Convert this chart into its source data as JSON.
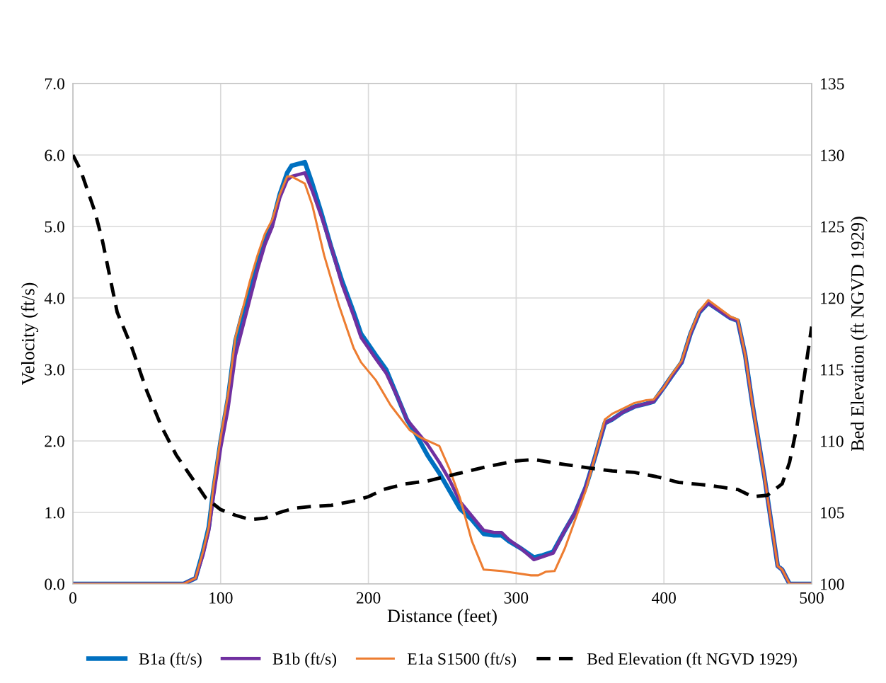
{
  "chart_data": {
    "type": "line",
    "xlabel": "Distance (feet)",
    "ylabel": "Velocity (ft/s)",
    "y2label": "Bed Elevation (ft NGVD 1929)",
    "xlim": [
      0,
      500
    ],
    "xticks": [
      0,
      100,
      200,
      300,
      400,
      500
    ],
    "ylim": [
      0,
      7
    ],
    "yticks": [
      {
        "value": 0,
        "label": "0.0"
      },
      {
        "value": 1,
        "label": "1.0"
      },
      {
        "value": 2,
        "label": "2.0"
      },
      {
        "value": 3,
        "label": "3.0"
      },
      {
        "value": 4,
        "label": "4.0"
      },
      {
        "value": 5,
        "label": "5.0"
      },
      {
        "value": 6,
        "label": "6.0"
      },
      {
        "value": 7,
        "label": "7.0"
      }
    ],
    "y2lim": [
      100,
      135
    ],
    "y2ticks": [
      100,
      105,
      110,
      115,
      120,
      125,
      130,
      135
    ],
    "grid": true,
    "legend": "bottom",
    "series": [
      {
        "name": "B1a (ft/s)",
        "color": "#0070c0",
        "line_style": "solid",
        "x": [
          0,
          75,
          80,
          83,
          88,
          92,
          95,
          100,
          105,
          110,
          115,
          120,
          125,
          130,
          135,
          140,
          145,
          148,
          157,
          162,
          168,
          175,
          182,
          190,
          195,
          200,
          205,
          212,
          220,
          226,
          232,
          240,
          248,
          255,
          262,
          270,
          278,
          285,
          290,
          295,
          303,
          312,
          318,
          325,
          333,
          340,
          347,
          353,
          360,
          365,
          372,
          380,
          388,
          393,
          400,
          405,
          412,
          418,
          424,
          430,
          445,
          450,
          455,
          460,
          468,
          477,
          480,
          485,
          500
        ],
        "values": [
          0,
          0,
          0.05,
          0.08,
          0.45,
          0.8,
          1.3,
          2.0,
          2.6,
          3.4,
          3.8,
          4.1,
          4.5,
          4.8,
          5.05,
          5.45,
          5.75,
          5.85,
          5.9,
          5.6,
          5.2,
          4.7,
          4.25,
          3.8,
          3.5,
          3.35,
          3.2,
          3.0,
          2.6,
          2.3,
          2.1,
          1.8,
          1.55,
          1.3,
          1.05,
          0.9,
          0.7,
          0.68,
          0.68,
          0.6,
          0.5,
          0.37,
          0.4,
          0.45,
          0.75,
          1.0,
          1.35,
          1.75,
          2.25,
          2.3,
          2.4,
          2.48,
          2.52,
          2.55,
          2.75,
          2.9,
          3.1,
          3.5,
          3.8,
          3.93,
          3.72,
          3.68,
          3.2,
          2.5,
          1.5,
          0.25,
          0.2,
          0,
          0
        ]
      },
      {
        "name": "B1b (ft/s)",
        "color": "#7030a0",
        "line_style": "solid",
        "x": [
          0,
          75,
          80,
          83,
          88,
          92,
          95,
          100,
          105,
          110,
          115,
          120,
          125,
          130,
          135,
          140,
          145,
          148,
          157,
          162,
          168,
          175,
          182,
          190,
          195,
          200,
          205,
          212,
          220,
          226,
          232,
          240,
          248,
          255,
          262,
          270,
          278,
          285,
          290,
          295,
          303,
          312,
          318,
          325,
          333,
          340,
          347,
          353,
          360,
          365,
          372,
          380,
          388,
          393,
          400,
          405,
          412,
          418,
          424,
          430,
          445,
          450,
          455,
          460,
          468,
          477,
          480,
          485,
          500
        ],
        "values": [
          0,
          0,
          0.05,
          0.08,
          0.4,
          0.75,
          1.2,
          1.9,
          2.45,
          3.2,
          3.6,
          4.0,
          4.4,
          4.75,
          5.0,
          5.4,
          5.65,
          5.7,
          5.75,
          5.5,
          5.15,
          4.7,
          4.2,
          3.75,
          3.45,
          3.3,
          3.15,
          2.95,
          2.6,
          2.3,
          2.15,
          1.95,
          1.7,
          1.45,
          1.15,
          0.95,
          0.75,
          0.72,
          0.72,
          0.62,
          0.5,
          0.34,
          0.38,
          0.43,
          0.75,
          1.0,
          1.35,
          1.75,
          2.25,
          2.3,
          2.4,
          2.48,
          2.52,
          2.55,
          2.75,
          2.9,
          3.1,
          3.5,
          3.8,
          3.93,
          3.72,
          3.68,
          3.2,
          2.5,
          1.5,
          0.25,
          0.2,
          0,
          0
        ]
      },
      {
        "name": "E1a S1500 (ft/s)",
        "color": "#ed7d31",
        "line_style": "solid",
        "x": [
          0,
          75,
          80,
          83,
          88,
          92,
          95,
          100,
          105,
          110,
          115,
          120,
          125,
          130,
          135,
          140,
          145,
          148,
          157,
          162,
          170,
          180,
          185,
          190,
          195,
          205,
          215,
          228,
          235,
          248,
          255,
          262,
          270,
          278,
          290,
          300,
          310,
          315,
          320,
          326,
          333,
          340,
          347,
          353,
          360,
          365,
          372,
          380,
          388,
          393,
          400,
          405,
          412,
          418,
          424,
          430,
          445,
          450,
          455,
          460,
          468,
          477,
          480,
          485,
          500
        ],
        "values": [
          0,
          0,
          0.05,
          0.08,
          0.45,
          0.8,
          1.35,
          2.05,
          2.65,
          3.45,
          3.85,
          4.25,
          4.6,
          4.9,
          5.1,
          5.45,
          5.7,
          5.7,
          5.6,
          5.3,
          4.6,
          3.9,
          3.6,
          3.3,
          3.1,
          2.85,
          2.5,
          2.15,
          2.05,
          1.93,
          1.6,
          1.2,
          0.6,
          0.2,
          0.18,
          0.15,
          0.12,
          0.12,
          0.17,
          0.18,
          0.5,
          0.9,
          1.3,
          1.75,
          2.3,
          2.38,
          2.45,
          2.53,
          2.57,
          2.58,
          2.75,
          2.92,
          3.12,
          3.52,
          3.82,
          3.97,
          3.74,
          3.7,
          3.2,
          2.5,
          1.5,
          0.25,
          0.2,
          0,
          0
        ]
      },
      {
        "name": "Bed Elevation (ft NGVD 1929)",
        "color": "#000000",
        "line_style": "dashed",
        "axis": "y2",
        "x": [
          0,
          5,
          10,
          15,
          20,
          25,
          30,
          40,
          50,
          60,
          70,
          80,
          90,
          100,
          110,
          120,
          130,
          140,
          150,
          160,
          175,
          190,
          200,
          210,
          225,
          240,
          260,
          280,
          300,
          312,
          330,
          350,
          365,
          380,
          395,
          410,
          430,
          450,
          460,
          470,
          480,
          485,
          490,
          495,
          500
        ],
        "values": [
          130,
          129,
          127.5,
          126,
          124,
          121.5,
          119,
          116.5,
          113.5,
          111,
          109,
          107.5,
          106,
          105.2,
          104.8,
          104.5,
          104.6,
          105,
          105.3,
          105.4,
          105.5,
          105.8,
          106.1,
          106.6,
          107,
          107.2,
          107.7,
          108.2,
          108.6,
          108.7,
          108.4,
          108.1,
          107.9,
          107.8,
          107.5,
          107.1,
          106.9,
          106.6,
          106.1,
          106.2,
          107,
          108.5,
          111,
          114.5,
          118
        ]
      }
    ]
  }
}
